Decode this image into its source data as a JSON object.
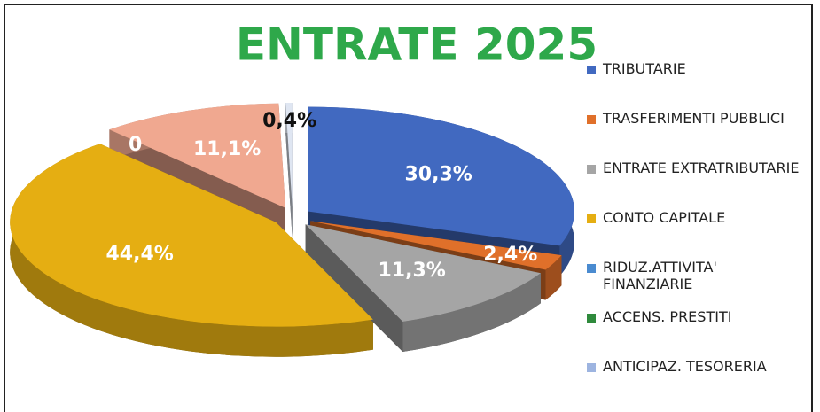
{
  "chart_data": {
    "type": "pie3d",
    "title": "ENTRATE 2025",
    "categories": [
      "TRIBUTARIE",
      "TRASFERIMENTI PUBBLICI",
      "ENTRATE EXTRATRIBUTARIE",
      "CONTO CAPITALE",
      "RIDUZ.ATTIVITA' FINANZIARIE",
      "ACCENS. PRESTITI",
      "ANTICIPAZ. TESORERIA"
    ],
    "values": [
      30.3,
      2.4,
      11.3,
      44.4,
      0,
      11.1,
      0.4
    ],
    "value_labels": [
      "30,3%",
      "2,4%",
      "11,3%",
      "44,4%",
      "0",
      "11,1%",
      "0,4%"
    ],
    "colors": [
      "#4169c0",
      "#e0702a",
      "#a5a5a5",
      "#e5ae12",
      "#4a8bd0",
      "#2f8a3c",
      "#9db4e0"
    ],
    "slice_colors": [
      "#4169c0",
      "#e0702a",
      "#a5a5a5",
      "#e5ae12",
      "#2b4a1c",
      "#f0a890",
      "#dfe6f2"
    ],
    "label_colors": [
      "#ffffff",
      "#ffffff",
      "#ffffff",
      "#ffffff",
      "#ffffff",
      "#ffffff",
      "#111111"
    ],
    "legend": "right"
  }
}
